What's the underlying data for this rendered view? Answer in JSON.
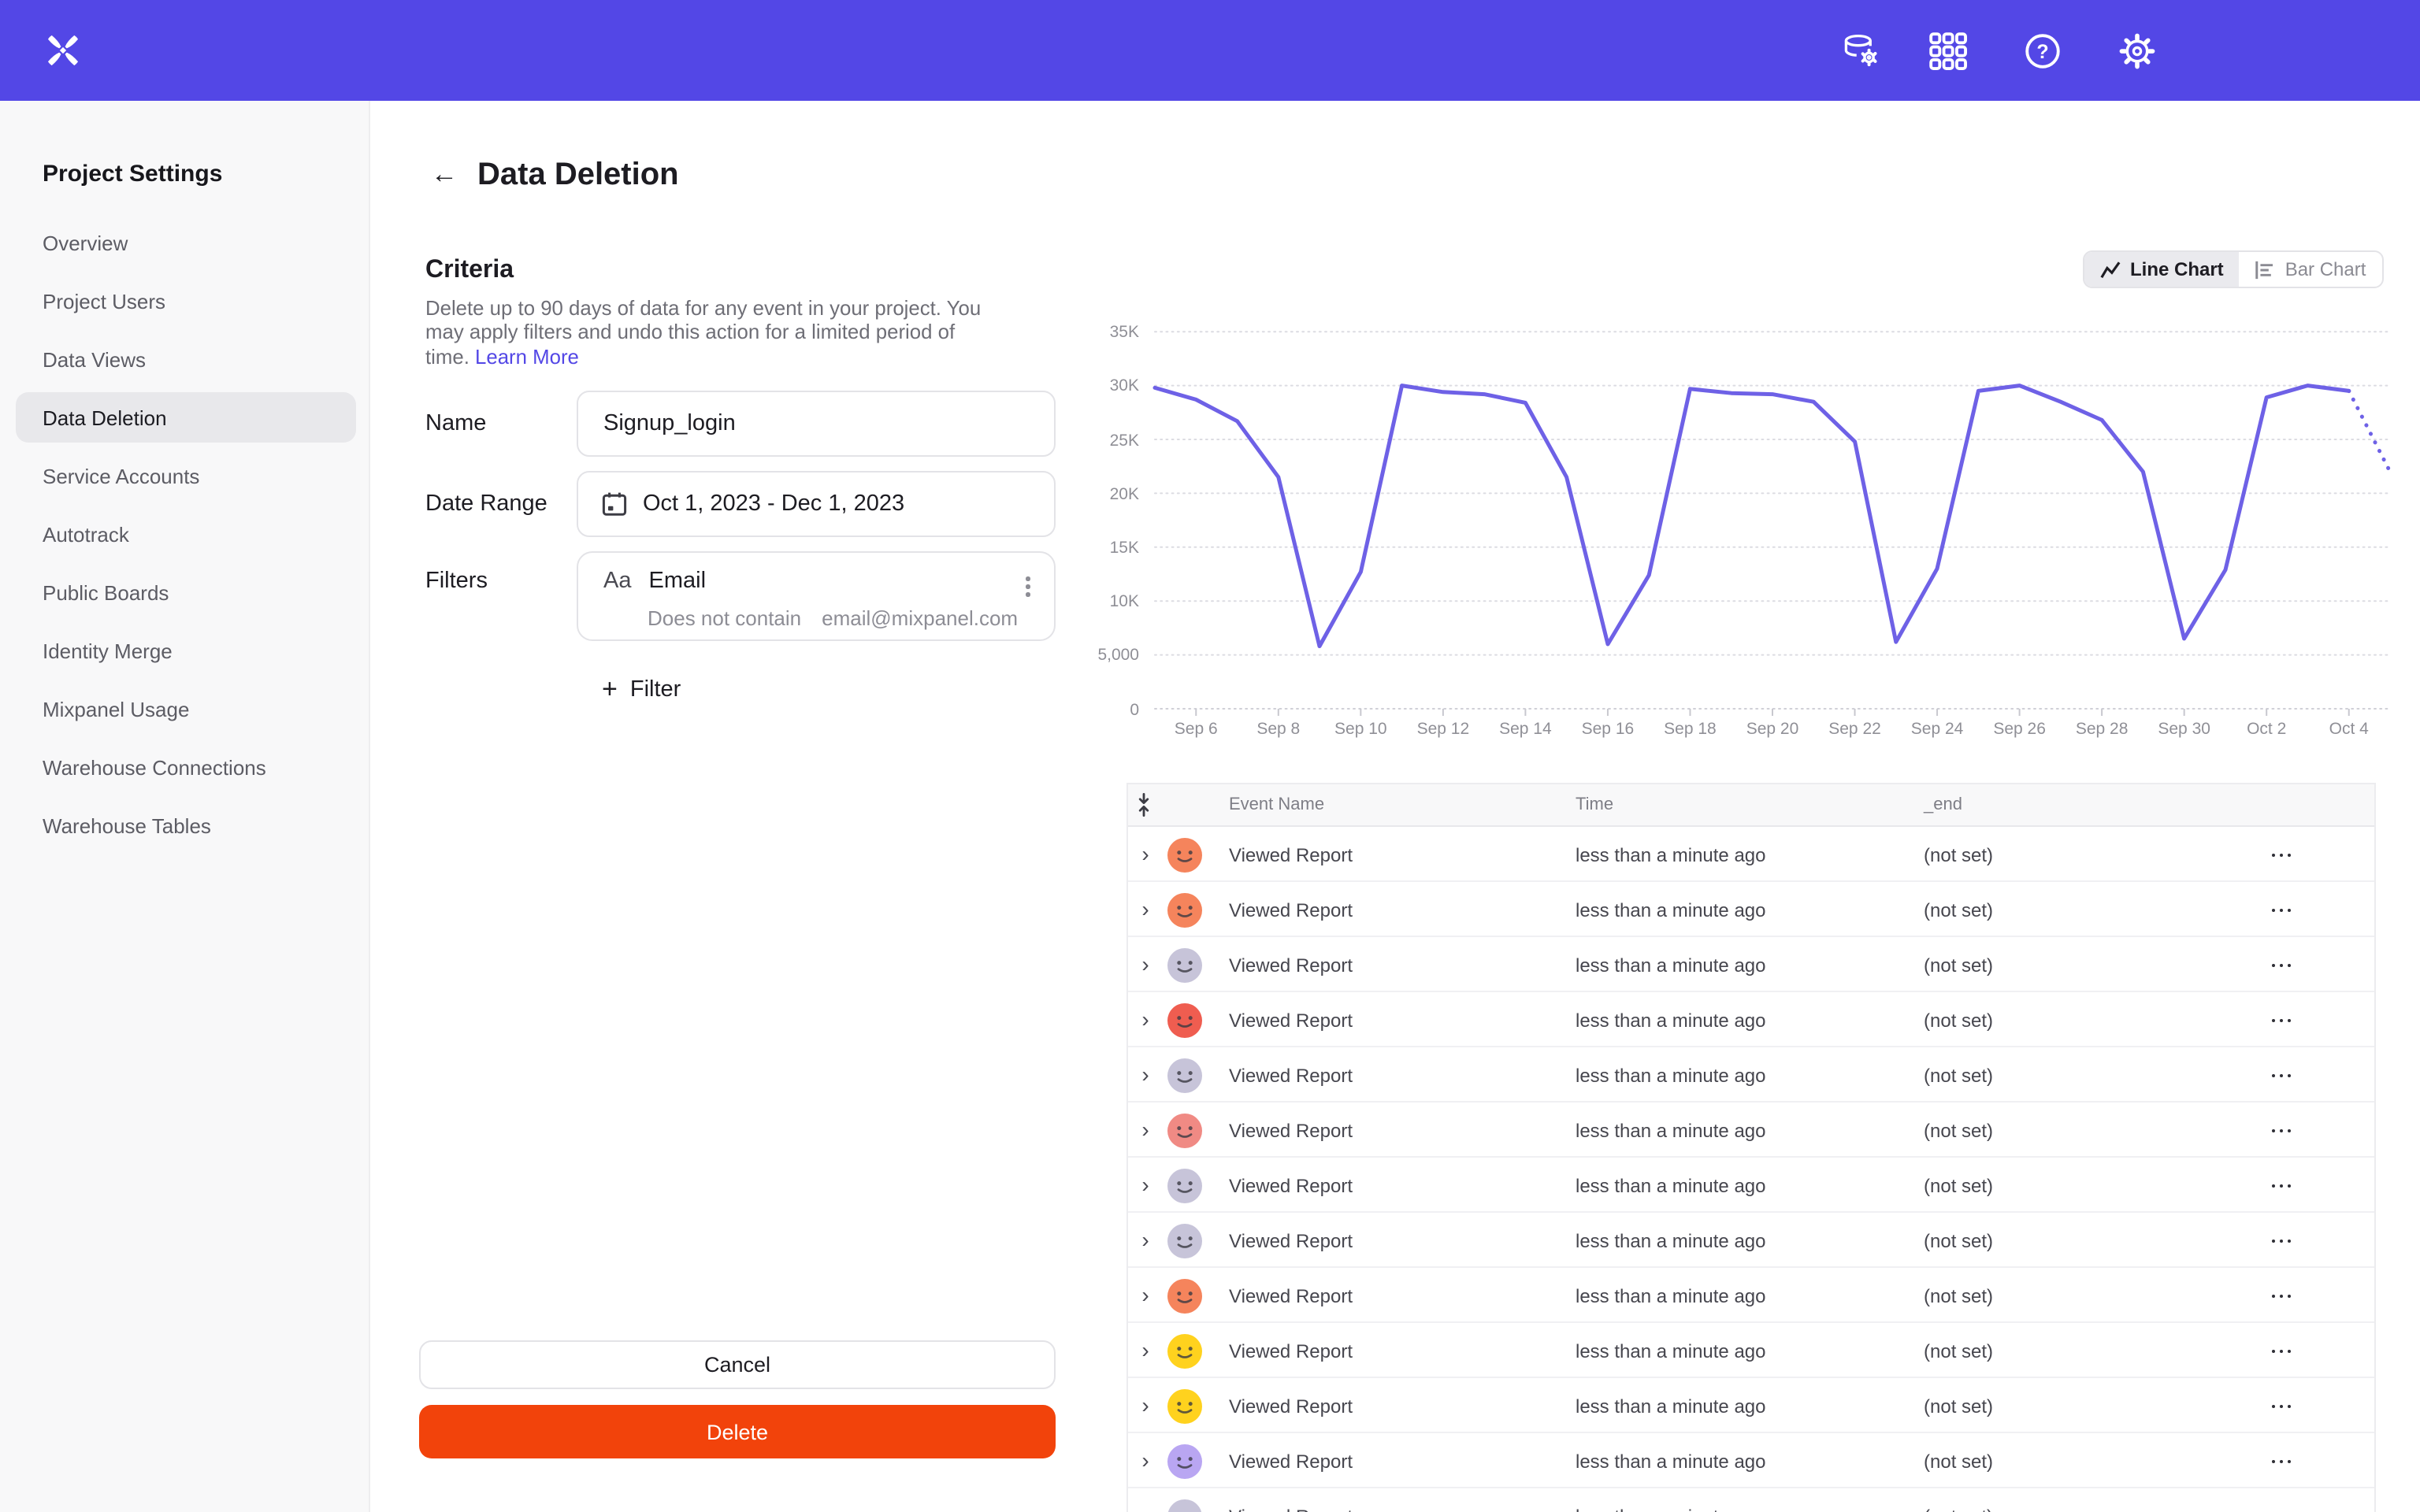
{
  "colors": {
    "accent": "#5347E6",
    "danger": "#F2430B",
    "chart_line": "#6E61E6",
    "sidebar_active_bg": "#E8E8EB"
  },
  "topbar": {
    "icons": [
      "data-management",
      "apps-grid",
      "help",
      "settings"
    ]
  },
  "sidebar": {
    "title": "Project Settings",
    "items": [
      {
        "label": "Overview",
        "active": false
      },
      {
        "label": "Project Users",
        "active": false
      },
      {
        "label": "Data Views",
        "active": false
      },
      {
        "label": "Data Deletion",
        "active": true
      },
      {
        "label": "Service Accounts",
        "active": false
      },
      {
        "label": "Autotrack",
        "active": false
      },
      {
        "label": "Public Boards",
        "active": false
      },
      {
        "label": "Identity Merge",
        "active": false
      },
      {
        "label": "Mixpanel Usage",
        "active": false
      },
      {
        "label": "Warehouse Connections",
        "active": false
      },
      {
        "label": "Warehouse Tables",
        "active": false
      }
    ]
  },
  "page": {
    "back": "←",
    "title": "Data Deletion"
  },
  "criteria": {
    "heading": "Criteria",
    "description": "Delete up to 90 days of data for any event in your project. You may apply filters and undo this action for a limited period of time. ",
    "link_label": "Learn More",
    "name_label": "Name",
    "name_value": "Signup_login",
    "date_label": "Date Range",
    "date_value": "Oct 1, 2023 - Dec 1, 2023",
    "filters_label": "Filters",
    "filter": {
      "type_badge": "Aa",
      "property": "Email",
      "operator": "Does not contain",
      "value": "email@mixpanel.com"
    },
    "add_filter_label": "Filter",
    "cancel_label": "Cancel",
    "delete_label": "Delete"
  },
  "chart_toggle": {
    "line": "Line Chart",
    "bar": "Bar Chart",
    "active": "line"
  },
  "chart_data": {
    "type": "line",
    "x": [
      "Sep 5",
      "Sep 6",
      "Sep 7",
      "Sep 8",
      "Sep 9",
      "Sep 10",
      "Sep 11",
      "Sep 12",
      "Sep 13",
      "Sep 14",
      "Sep 15",
      "Sep 16",
      "Sep 17",
      "Sep 18",
      "Sep 19",
      "Sep 20",
      "Sep 21",
      "Sep 22",
      "Sep 23",
      "Sep 24",
      "Sep 25",
      "Sep 26",
      "Sep 27",
      "Sep 28",
      "Sep 29",
      "Sep 30",
      "Oct 1",
      "Oct 2",
      "Oct 3",
      "Oct 4",
      "Oct 5"
    ],
    "values": [
      29800,
      28700,
      26700,
      21500,
      5800,
      12700,
      30000,
      29400,
      29200,
      28400,
      21500,
      6000,
      12400,
      29700,
      29300,
      29200,
      28500,
      24800,
      6200,
      13000,
      29500,
      30000,
      28500,
      26800,
      22000,
      6500,
      12900,
      28900,
      30000,
      29500,
      22000
    ],
    "projected_from_index": 29,
    "xtick_labels": [
      "Sep 6",
      "Sep 8",
      "Sep 10",
      "Sep 12",
      "Sep 14",
      "Sep 16",
      "Sep 18",
      "Sep 20",
      "Sep 22",
      "Sep 24",
      "Sep 26",
      "Sep 28",
      "Sep 30",
      "Oct 2",
      "Oct 4"
    ],
    "xtick_day_indices": [
      1,
      3,
      5,
      7,
      9,
      11,
      13,
      15,
      17,
      19,
      21,
      23,
      25,
      27,
      29
    ],
    "ytick_values": [
      0,
      5000,
      10000,
      15000,
      20000,
      25000,
      30000,
      35000
    ],
    "ytick_labels": [
      "0",
      "5,000",
      "10K",
      "15K",
      "20K",
      "25K",
      "30K",
      "35K"
    ],
    "ylim": [
      0,
      35000
    ],
    "grid": true,
    "legend": "none",
    "line_color": "#6E61E6"
  },
  "table": {
    "headers": {
      "event": "Event Name",
      "time": "Time",
      "end": "_end"
    },
    "rows": [
      {
        "avatar_color": "#F5845C",
        "event": "Viewed Report",
        "time": "less than a minute ago",
        "end": "(not set)"
      },
      {
        "avatar_color": "#F5845C",
        "event": "Viewed Report",
        "time": "less than a minute ago",
        "end": "(not set)"
      },
      {
        "avatar_color": "#C7C4D9",
        "event": "Viewed Report",
        "time": "less than a minute ago",
        "end": "(not set)"
      },
      {
        "avatar_color": "#EF5D50",
        "event": "Viewed Report",
        "time": "less than a minute ago",
        "end": "(not set)"
      },
      {
        "avatar_color": "#C7C4D9",
        "event": "Viewed Report",
        "time": "less than a minute ago",
        "end": "(not set)"
      },
      {
        "avatar_color": "#F08A84",
        "event": "Viewed Report",
        "time": "less than a minute ago",
        "end": "(not set)"
      },
      {
        "avatar_color": "#C7C4D9",
        "event": "Viewed Report",
        "time": "less than a minute ago",
        "end": "(not set)"
      },
      {
        "avatar_color": "#C7C4D9",
        "event": "Viewed Report",
        "time": "less than a minute ago",
        "end": "(not set)"
      },
      {
        "avatar_color": "#F5845C",
        "event": "Viewed Report",
        "time": "less than a minute ago",
        "end": "(not set)"
      },
      {
        "avatar_color": "#FFD21E",
        "event": "Viewed Report",
        "time": "less than a minute ago",
        "end": "(not set)"
      },
      {
        "avatar_color": "#FFD21E",
        "event": "Viewed Report",
        "time": "less than a minute ago",
        "end": "(not set)"
      },
      {
        "avatar_color": "#B9A6F2",
        "event": "Viewed Report",
        "time": "less than a minute ago",
        "end": "(not set)"
      },
      {
        "avatar_color": "#C7C4D9",
        "event": "Viewed Report",
        "time": "less than a minute ago",
        "end": "(not set)"
      }
    ]
  }
}
